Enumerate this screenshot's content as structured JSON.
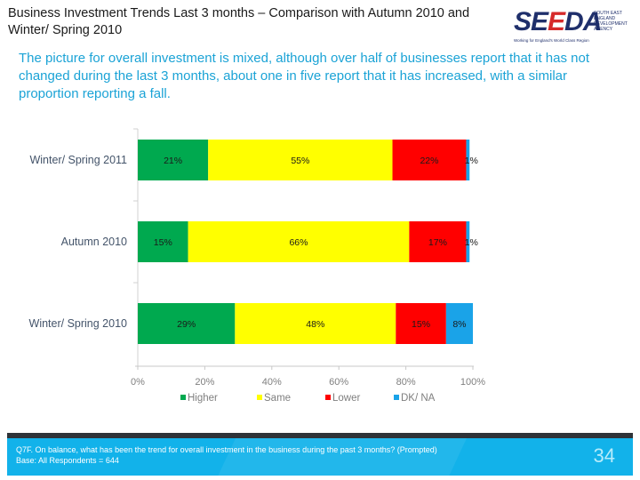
{
  "slide": {
    "title": "Business Investment Trends Last 3 months – Comparison with Autumn 2010 and Winter/ Spring 2010",
    "summary": "The picture for overall investment is mixed, although over half of businesses report that it has not changed during the last 3 months, about one in five report that it has increased, with a similar proportion reporting a fall.",
    "page_number": "34"
  },
  "logo": {
    "wordmark_left": "SE",
    "wordmark_flag": "E",
    "wordmark_right": "DA",
    "side_text": "South East England Development Agency",
    "tagline": "Working for England's World Class Region"
  },
  "footer": {
    "question": "Q7F. On balance, what has been the trend for overall investment in the business during the past 3 months? (Prompted)",
    "base": "Base: All Respondents = 644"
  },
  "colors": {
    "higher": "#00a94f",
    "same": "#ffff00",
    "lower": "#ff0000",
    "dk_na": "#1aa3e8",
    "summary_text": "#1ba3d6",
    "footer_bar": "#12b2ea"
  },
  "chart_data": {
    "type": "bar",
    "orientation": "horizontal",
    "stacked": true,
    "title": "",
    "xlabel": "",
    "ylabel": "",
    "categories": [
      "Winter/ Spring 2011",
      "Autumn 2010",
      "Winter/ Spring 2010"
    ],
    "series": [
      {
        "name": "Higher",
        "color": "#00a94f",
        "values": [
          21,
          15,
          29
        ]
      },
      {
        "name": "Same",
        "color": "#ffff00",
        "values": [
          55,
          66,
          48
        ]
      },
      {
        "name": "Lower",
        "color": "#ff0000",
        "values": [
          22,
          17,
          15
        ]
      },
      {
        "name": "DK/ NA",
        "color": "#1aa3e8",
        "values": [
          1,
          1,
          8
        ]
      }
    ],
    "xlim": [
      0,
      100
    ],
    "xticks": [
      "0%",
      "20%",
      "40%",
      "60%",
      "80%",
      "100%"
    ],
    "data_labels": true,
    "grid": false,
    "legend": {
      "position": "bottom"
    }
  }
}
